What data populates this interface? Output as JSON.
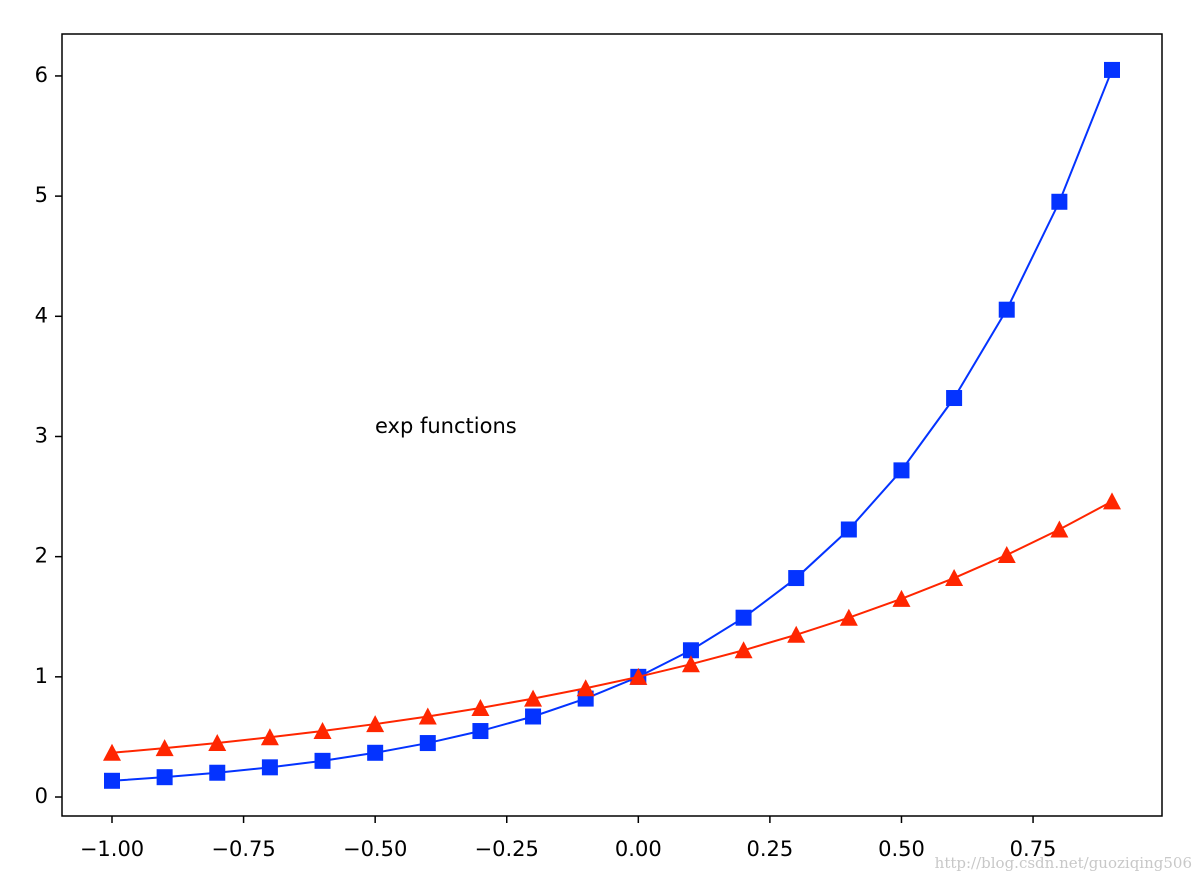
{
  "chart_data": {
    "type": "line",
    "annotation": "exp functions",
    "watermark": "http://blog.csdn.net/guoziqing506",
    "x": [
      -1.0,
      -0.9,
      -0.8,
      -0.7,
      -0.6,
      -0.5,
      -0.4,
      -0.3,
      -0.2,
      -0.1,
      0.0,
      0.1,
      0.2,
      0.3,
      0.4,
      0.5,
      0.6,
      0.7,
      0.8,
      0.9
    ],
    "series": [
      {
        "color": "#0433ff",
        "marker": "square",
        "values": [
          0.135,
          0.165,
          0.202,
          0.247,
          0.301,
          0.368,
          0.449,
          0.549,
          0.67,
          0.819,
          1.0,
          1.221,
          1.492,
          1.822,
          2.226,
          2.718,
          3.32,
          4.055,
          4.953,
          6.05
        ]
      },
      {
        "color": "#ff2600",
        "marker": "triangle",
        "values": [
          0.368,
          0.407,
          0.449,
          0.497,
          0.549,
          0.607,
          0.67,
          0.741,
          0.819,
          0.905,
          1.0,
          1.105,
          1.221,
          1.35,
          1.492,
          1.649,
          1.822,
          2.014,
          2.226,
          2.46
        ]
      }
    ],
    "xlim": [
      -1.095,
      0.995
    ],
    "ylim": [
      -0.158,
      6.349
    ],
    "xticks": [
      {
        "value": -1.0,
        "label": "−1.00"
      },
      {
        "value": -0.75,
        "label": "−0.75"
      },
      {
        "value": -0.5,
        "label": "−0.50"
      },
      {
        "value": -0.25,
        "label": "−0.25"
      },
      {
        "value": 0.0,
        "label": "0.00"
      },
      0.25,
      {
        "value": 0.5,
        "label": "0.50"
      },
      0.75
    ],
    "yticks": [
      0,
      1,
      2,
      3,
      4,
      5,
      6
    ],
    "grid": false
  }
}
